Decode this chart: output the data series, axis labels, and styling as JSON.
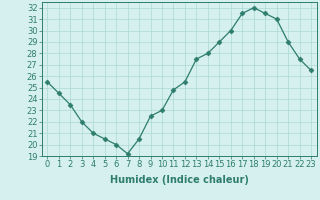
{
  "x": [
    0,
    1,
    2,
    3,
    4,
    5,
    6,
    7,
    8,
    9,
    10,
    11,
    12,
    13,
    14,
    15,
    16,
    17,
    18,
    19,
    20,
    21,
    22,
    23
  ],
  "y": [
    25.5,
    24.5,
    23.5,
    22.0,
    21.0,
    20.5,
    20.0,
    19.2,
    20.5,
    22.5,
    23.0,
    24.8,
    25.5,
    27.5,
    28.0,
    29.0,
    30.0,
    31.5,
    32.0,
    31.5,
    31.0,
    29.0,
    27.5,
    26.5
  ],
  "xlabel": "Humidex (Indice chaleur)",
  "xlim": [
    -0.5,
    23.5
  ],
  "ylim": [
    19,
    32.5
  ],
  "yticks": [
    19,
    20,
    21,
    22,
    23,
    24,
    25,
    26,
    27,
    28,
    29,
    30,
    31,
    32
  ],
  "xticks": [
    0,
    1,
    2,
    3,
    4,
    5,
    6,
    7,
    8,
    9,
    10,
    11,
    12,
    13,
    14,
    15,
    16,
    17,
    18,
    19,
    20,
    21,
    22,
    23
  ],
  "line_color": "#2e7d6e",
  "marker": "D",
  "marker_size": 2.5,
  "bg_color": "#d6f0ef",
  "grid_color": "#aad8d5",
  "xlabel_fontsize": 7,
  "tick_fontsize": 6
}
